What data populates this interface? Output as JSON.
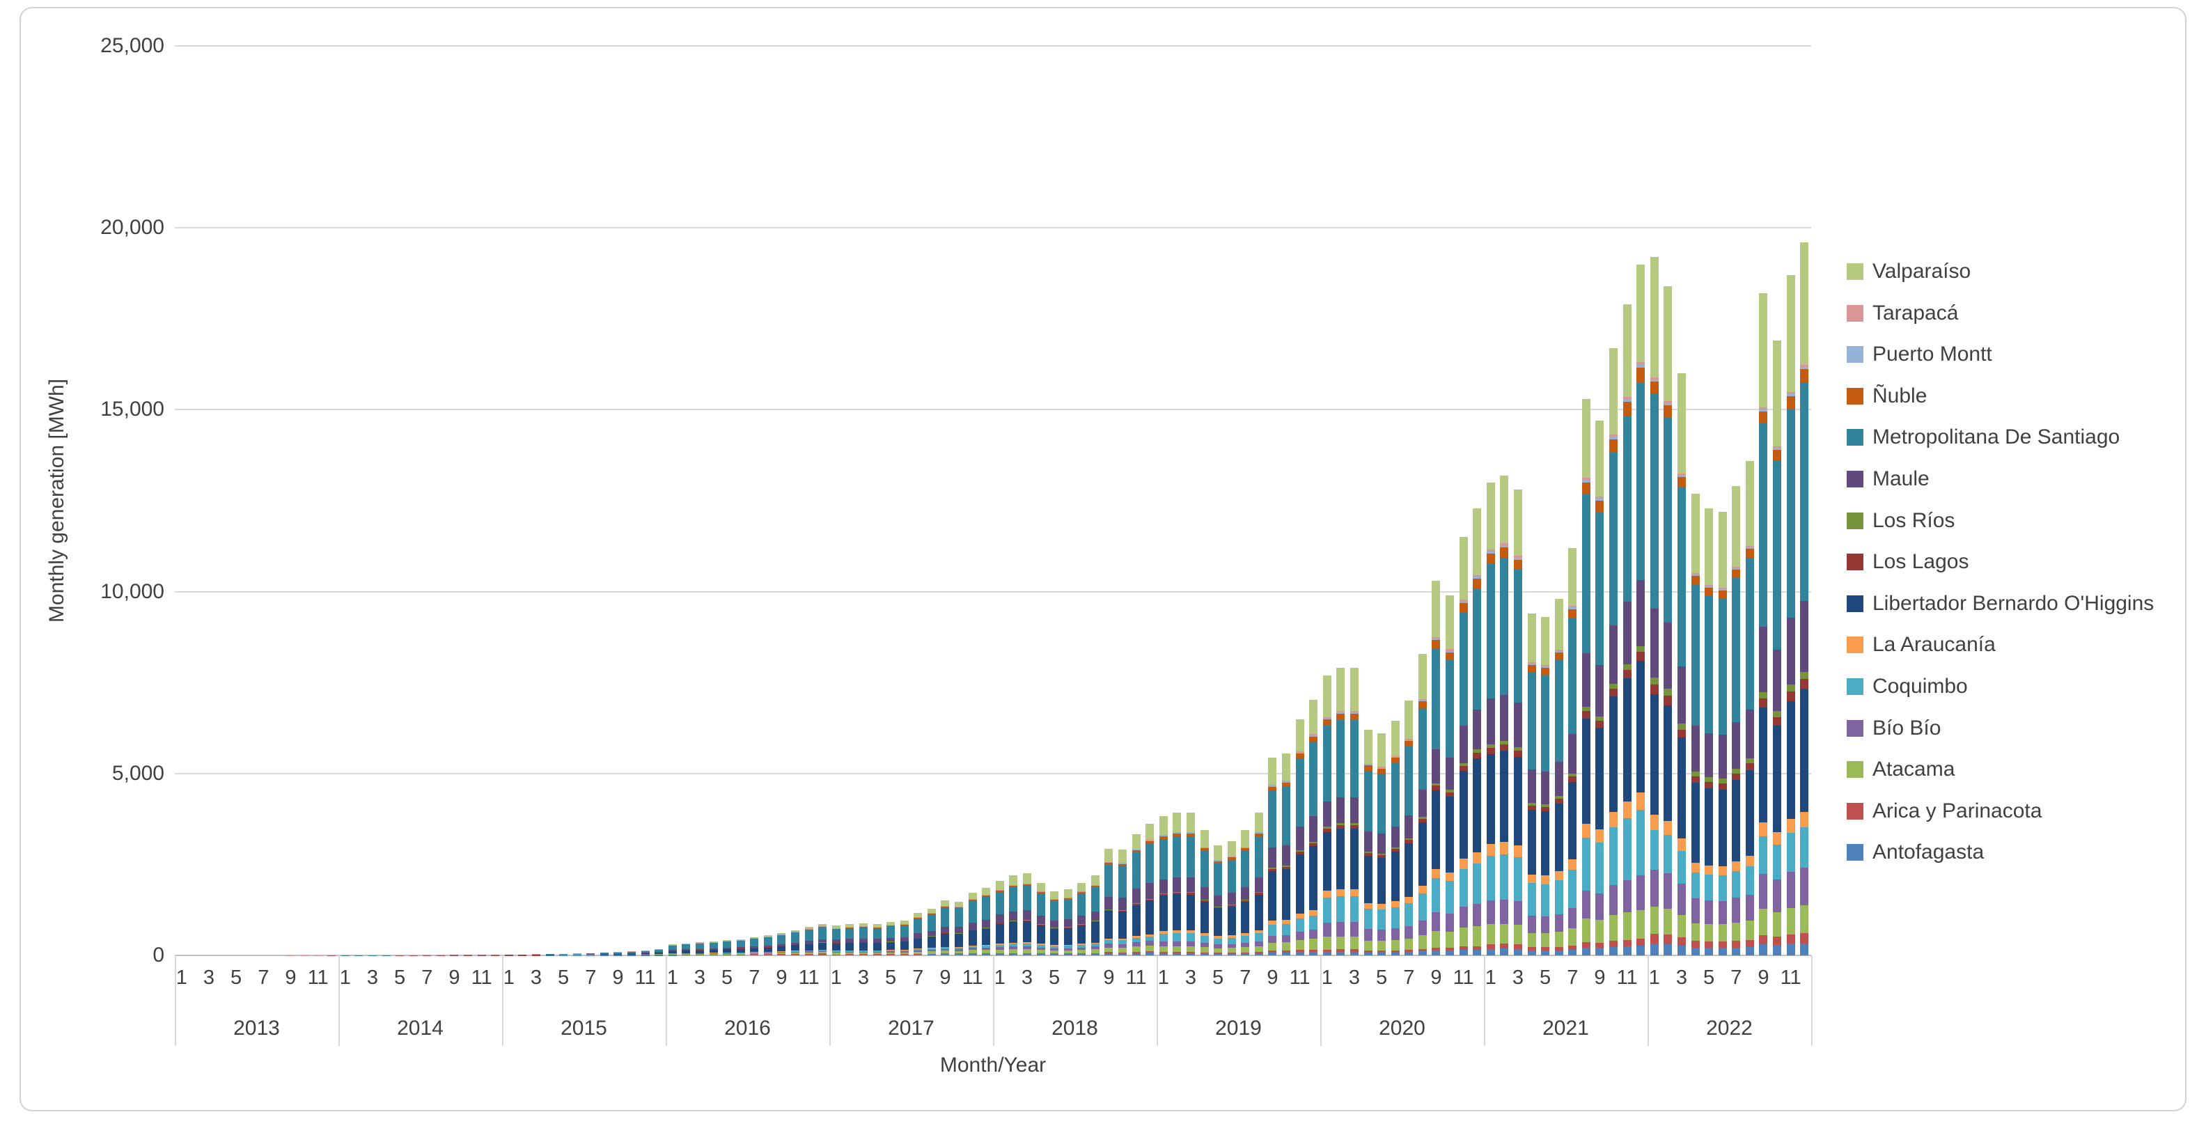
{
  "chart_data": {
    "type": "bar",
    "stacked": true,
    "title": "",
    "xlabel": "Month/Year",
    "ylabel": "Monthly generation [MWh]",
    "ylim": [
      0,
      25000
    ],
    "ytick_step": 5000,
    "ytick_labels": [
      "0",
      "5,000",
      "10,000",
      "15,000",
      "20,000",
      "25,000"
    ],
    "grid": "horizontal",
    "legend_position": "right",
    "month_tick_labels": [
      "1",
      "3",
      "5",
      "7",
      "9",
      "11"
    ],
    "years": [
      "2013",
      "2014",
      "2015",
      "2016",
      "2017",
      "2018",
      "2019",
      "2020",
      "2021",
      "2022"
    ],
    "series_order_bottom_to_top": [
      "Antofagasta",
      "Arica y Parinacota",
      "Atacama",
      "Bío Bío",
      "Coquimbo",
      "La Araucanía",
      "Libertador Bernardo O'Higgins",
      "Los Lagos",
      "Los Ríos",
      "Maule",
      "Metropolitana De Santiago",
      "Ñuble",
      "Puerto Montt",
      "Tarapacá",
      "Valparaíso"
    ],
    "legend_top_to_bottom": [
      "Valparaíso",
      "Tarapacá",
      "Puerto Montt",
      "Ñuble",
      "Metropolitana De Santiago",
      "Maule",
      "Los Ríos",
      "Los Lagos",
      "Libertador Bernardo O'Higgins",
      "La Araucanía",
      "Coquimbo",
      "Bío Bío",
      "Atacama",
      "Arica y Parinacota",
      "Antofagasta"
    ],
    "series_colors": {
      "Antofagasta": "#4f81bd",
      "Arica y Parinacota": "#c0504d",
      "Atacama": "#9bbb59",
      "Bío Bío": "#8064a2",
      "Coquimbo": "#4bacc6",
      "La Araucanía": "#f89c4e",
      "Libertador Bernardo O'Higgins": "#1f497d",
      "Los Lagos": "#953735",
      "Los Ríos": "#77933c",
      "Maule": "#604a7b",
      "Metropolitana De Santiago": "#31849b",
      "Ñuble": "#c55a11",
      "Puerto Montt": "#95b3d7",
      "Tarapacá": "#d99694",
      "Valparaíso": "#b5c981"
    },
    "monthly_totals_mwh": {
      "2013": [
        0,
        0,
        0,
        0,
        0,
        0,
        2,
        2,
        3,
        3,
        4,
        5
      ],
      "2014": [
        6,
        7,
        8,
        9,
        10,
        11,
        12,
        13,
        15,
        16,
        18,
        20
      ],
      "2015": [
        25,
        28,
        32,
        38,
        46,
        56,
        68,
        80,
        95,
        115,
        140,
        180
      ],
      "2016": [
        300,
        330,
        360,
        390,
        420,
        450,
        500,
        550,
        620,
        700,
        780,
        860
      ],
      "2017": [
        830,
        860,
        890,
        860,
        920,
        950,
        1160,
        1290,
        1510,
        1480,
        1730,
        1850
      ],
      "2018": [
        2050,
        2210,
        2260,
        2000,
        1760,
        1810,
        2000,
        2210,
        2930,
        2900,
        3330,
        3620
      ],
      "2019": [
        3840,
        3930,
        3920,
        3440,
        3030,
        3150,
        3440,
        3920,
        5430,
        5560,
        6490,
        7030
      ],
      "2020": [
        7700,
        7900,
        7900,
        6200,
        6100,
        6450,
        7000,
        8300,
        10300,
        9900,
        11500,
        12300
      ],
      "2021": [
        13000,
        13200,
        12800,
        9400,
        9300,
        9800,
        11200,
        15300,
        14700,
        16700,
        17900,
        19000
      ],
      "2022": [
        19200,
        18400,
        16000,
        12700,
        12300,
        12200,
        12900,
        13600,
        18200,
        16900,
        18700,
        19600
      ]
    },
    "series_share_by_year_bottom_to_top": {
      "2013": [
        0,
        0.3,
        0,
        0,
        0,
        0,
        0,
        0,
        0,
        0,
        0.2,
        0,
        0,
        0.5,
        0
      ],
      "2014": [
        0.05,
        0.15,
        0.05,
        0,
        0,
        0,
        0.1,
        0,
        0,
        0.05,
        0.3,
        0,
        0,
        0.3,
        0
      ],
      "2015": [
        0.04,
        0.1,
        0.06,
        0.02,
        0.02,
        0,
        0.18,
        0.01,
        0,
        0.06,
        0.38,
        0,
        0.01,
        0.12,
        0
      ],
      "2016": [
        0.03,
        0.03,
        0.05,
        0.03,
        0.03,
        0.01,
        0.22,
        0.01,
        0.005,
        0.09,
        0.4,
        0.005,
        0.01,
        0.03,
        0.05
      ],
      "2017": [
        0.025,
        0.01,
        0.05,
        0.035,
        0.03,
        0.01,
        0.24,
        0.01,
        0.005,
        0.115,
        0.355,
        0.01,
        0.005,
        0.01,
        0.1
      ],
      "2018": [
        0.02,
        0.01,
        0.045,
        0.035,
        0.035,
        0.015,
        0.26,
        0.01,
        0.005,
        0.12,
        0.305,
        0.015,
        0.005,
        0.005,
        0.125
      ],
      "2019": [
        0.015,
        0.008,
        0.042,
        0.035,
        0.055,
        0.022,
        0.25,
        0.012,
        0.006,
        0.1,
        0.29,
        0.02,
        0.005,
        0.005,
        0.135
      ],
      "2020": [
        0.013,
        0.008,
        0.045,
        0.05,
        0.09,
        0.025,
        0.21,
        0.012,
        0.007,
        0.09,
        0.27,
        0.022,
        0.004,
        0.004,
        0.15
      ],
      "2021": [
        0.014,
        0.01,
        0.042,
        0.05,
        0.095,
        0.025,
        0.19,
        0.013,
        0.008,
        0.096,
        0.285,
        0.022,
        0.004,
        0.004,
        0.142
      ],
      "2022": [
        0.017,
        0.014,
        0.039,
        0.053,
        0.057,
        0.021,
        0.173,
        0.014,
        0.01,
        0.099,
        0.307,
        0.018,
        0.003,
        0.003,
        0.172
      ]
    }
  }
}
